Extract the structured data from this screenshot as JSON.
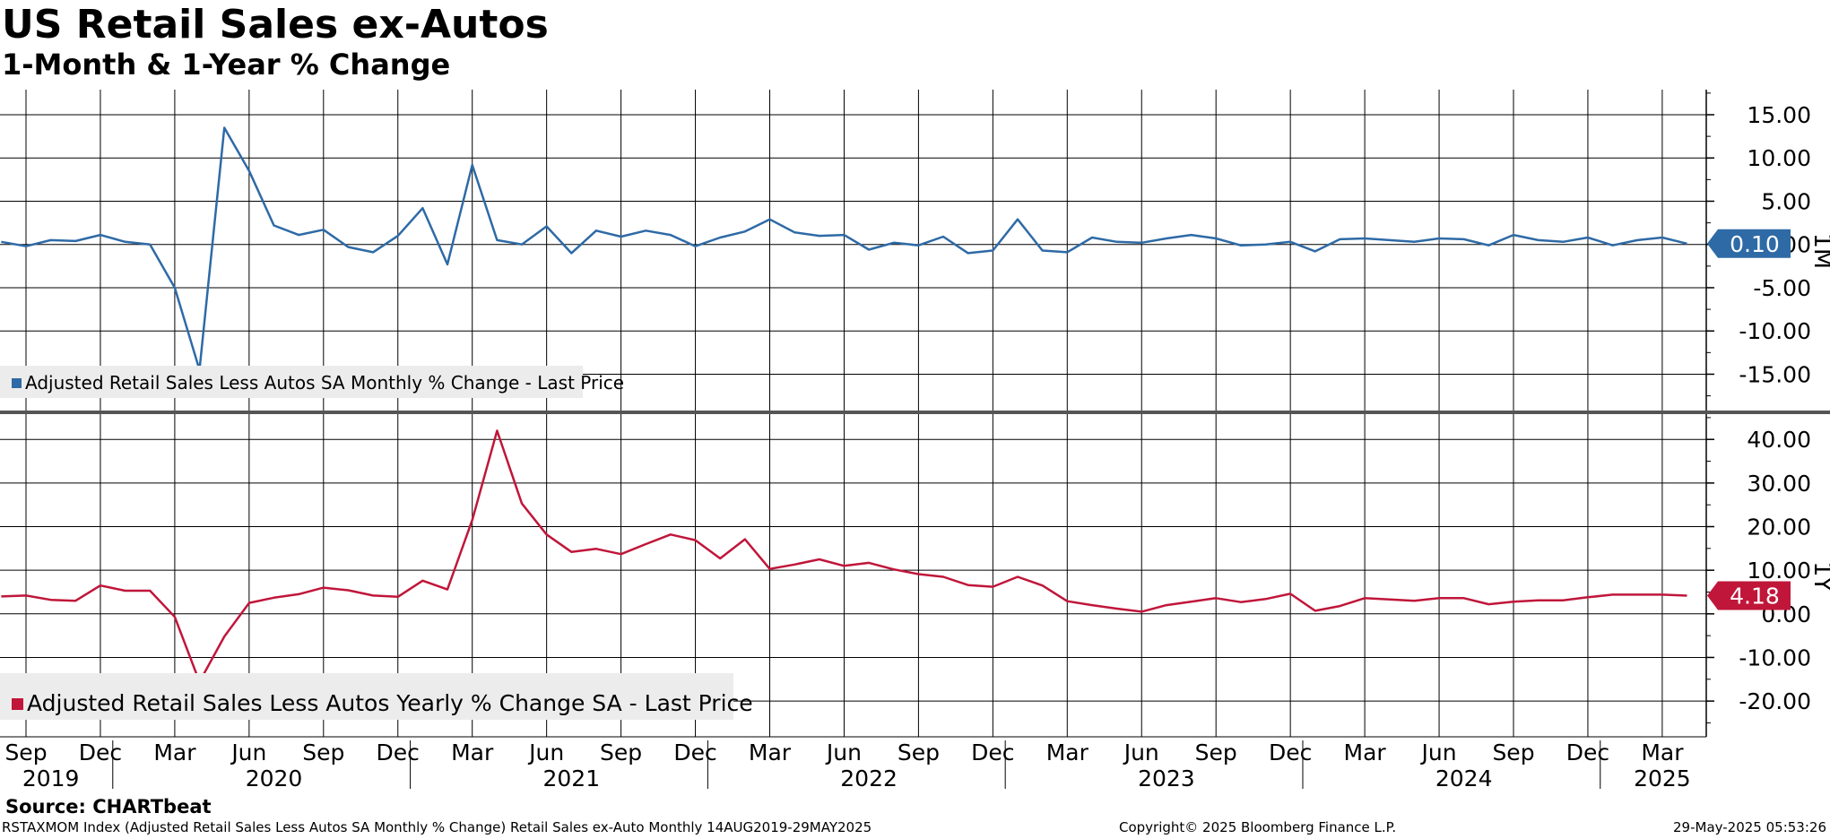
{
  "header": {
    "title": "US Retail Sales ex-Autos",
    "subtitle": "1-Month & 1-Year % Change"
  },
  "footer": {
    "source": "Source: CHARTbeat",
    "description": "RSTAXMOM Index (Adjusted Retail Sales Less Autos SA Monthly % Change) Retail Sales ex-Auto  Monthly 14AUG2019-29MAY2025",
    "copyright": "Copyright© 2025 Bloomberg Finance L.P.",
    "timestamp": "29-May-2025 05:53:26"
  },
  "colors": {
    "monthly": "#2e6aa6",
    "yearly": "#c0163a",
    "grid": "#000000",
    "legend_bg": "#ececec",
    "divider": "#555555"
  },
  "chart_data": [
    {
      "type": "line",
      "panel_label": "1M",
      "x_start": "2019-08",
      "series": [
        {
          "name": "Adjusted Retail Sales Less Autos SA Monthly % Change - Last Price",
          "last_value_label": "0.10",
          "values": [
            0.3,
            -0.2,
            0.5,
            0.4,
            1.1,
            0.3,
            0.0,
            -5.0,
            -14.5,
            13.5,
            8.5,
            2.2,
            1.1,
            1.7,
            -0.3,
            -0.9,
            1.0,
            4.2,
            -2.3,
            9.2,
            0.5,
            0.0,
            2.1,
            -1.0,
            1.6,
            0.9,
            1.6,
            1.1,
            -0.2,
            0.8,
            1.5,
            2.9,
            1.4,
            1.0,
            1.1,
            -0.6,
            0.2,
            -0.1,
            0.9,
            -1.0,
            -0.7,
            2.9,
            -0.7,
            -0.9,
            0.8,
            0.3,
            0.2,
            0.7,
            1.1,
            0.7,
            -0.1,
            0.0,
            0.3,
            -0.8,
            0.6,
            0.7,
            0.5,
            0.3,
            0.7,
            0.6,
            -0.1,
            1.1,
            0.5,
            0.3,
            0.8,
            -0.1,
            0.5,
            0.8,
            0.1
          ]
        }
      ],
      "y_ticks": [
        "15.00",
        "10.00",
        "5.00",
        "0.00",
        "-5.00",
        "-10.00",
        "-15.00"
      ],
      "ylim": [
        -19.2,
        17.9
      ],
      "grid": true,
      "legend_placement": "bottom-left"
    },
    {
      "type": "line",
      "panel_label": "1Y",
      "x_start": "2019-08",
      "series": [
        {
          "name": "Adjusted Retail Sales Less Autos Yearly % Change SA - Last Price",
          "last_value_label": "4.18",
          "values": [
            4.0,
            4.2,
            3.2,
            3.0,
            6.5,
            5.3,
            5.3,
            -0.7,
            -15.6,
            -5.2,
            2.5,
            3.7,
            4.5,
            6.0,
            5.4,
            4.2,
            3.9,
            7.6,
            5.6,
            21.5,
            42.0,
            25.3,
            18.2,
            14.2,
            14.9,
            13.7,
            16.0,
            18.2,
            16.9,
            12.7,
            17.1,
            10.3,
            11.3,
            12.5,
            11.0,
            11.7,
            10.2,
            9.1,
            8.5,
            6.6,
            6.2,
            8.5,
            6.5,
            2.9,
            2.0,
            1.2,
            0.5,
            2.0,
            2.8,
            3.6,
            2.7,
            3.4,
            4.6,
            0.7,
            1.8,
            3.6,
            3.3,
            3.0,
            3.6,
            3.6,
            2.2,
            2.8,
            3.1,
            3.1,
            3.8,
            4.4,
            4.4,
            4.4,
            4.18
          ]
        }
      ],
      "y_ticks": [
        "40.00",
        "30.00",
        "20.00",
        "10.00",
        "0.00",
        "-10.00",
        "-20.00"
      ],
      "ylim": [
        -28.2,
        45.8
      ],
      "grid": true,
      "legend_placement": "bottom-left"
    }
  ],
  "x_axis": {
    "month_ticks": [
      {
        "label": "Sep",
        "date": "2019-09"
      },
      {
        "label": "Dec",
        "date": "2019-12"
      },
      {
        "label": "Mar",
        "date": "2020-03"
      },
      {
        "label": "Jun",
        "date": "2020-06"
      },
      {
        "label": "Sep",
        "date": "2020-09"
      },
      {
        "label": "Dec",
        "date": "2020-12"
      },
      {
        "label": "Mar",
        "date": "2021-03"
      },
      {
        "label": "Jun",
        "date": "2021-06"
      },
      {
        "label": "Sep",
        "date": "2021-09"
      },
      {
        "label": "Dec",
        "date": "2021-12"
      },
      {
        "label": "Mar",
        "date": "2022-03"
      },
      {
        "label": "Jun",
        "date": "2022-06"
      },
      {
        "label": "Sep",
        "date": "2022-09"
      },
      {
        "label": "Dec",
        "date": "2022-12"
      },
      {
        "label": "Mar",
        "date": "2023-03"
      },
      {
        "label": "Jun",
        "date": "2023-06"
      },
      {
        "label": "Sep",
        "date": "2023-09"
      },
      {
        "label": "Dec",
        "date": "2023-12"
      },
      {
        "label": "Mar",
        "date": "2024-03"
      },
      {
        "label": "Jun",
        "date": "2024-06"
      },
      {
        "label": "Sep",
        "date": "2024-09"
      },
      {
        "label": "Dec",
        "date": "2024-12"
      },
      {
        "label": "Mar",
        "date": "2025-03"
      }
    ],
    "year_labels": [
      {
        "label": "2019",
        "date": "2019-10"
      },
      {
        "label": "2020",
        "date": "2020-07"
      },
      {
        "label": "2021",
        "date": "2021-07"
      },
      {
        "label": "2022",
        "date": "2022-07"
      },
      {
        "label": "2023",
        "date": "2023-07"
      },
      {
        "label": "2024",
        "date": "2024-07"
      },
      {
        "label": "2025",
        "date": "2025-03"
      }
    ]
  }
}
